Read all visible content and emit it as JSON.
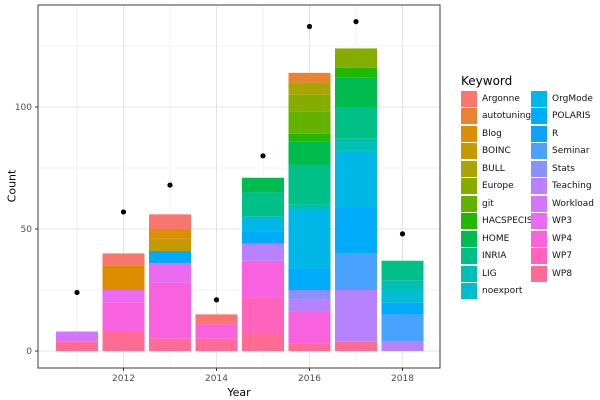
{
  "chart_data": {
    "type": "bar",
    "subtype": "stacked-bar-with-points",
    "title": "",
    "xlabel": "Year",
    "ylabel": "Count",
    "legend_title": "Keyword",
    "legend_position": "right",
    "grid": "on",
    "x_ticks": [
      2012,
      2014,
      2016,
      2018
    ],
    "x_minor_years": [
      2011,
      2013,
      2015,
      2017
    ],
    "y_ticks": [
      0,
      50,
      100
    ],
    "y_minor": [
      25,
      75,
      125
    ],
    "ylim": [
      -7,
      142
    ],
    "panel_border_color": "#3C3C3C",
    "major_grid_color": "#E3E3E3",
    "minor_grid_color": "#F2F2F2",
    "tick_label_color": "#4D4D4D",
    "dot_color": "#000000",
    "keywords": [
      {
        "label": "Argonne",
        "color": "#F8766D"
      },
      {
        "label": "autotuning",
        "color": "#EA8331"
      },
      {
        "label": "Blog",
        "color": "#DD8D00"
      },
      {
        "label": "BOINC",
        "color": "#C59900"
      },
      {
        "label": "BULL",
        "color": "#A8A400"
      },
      {
        "label": "Europe",
        "color": "#86AC00"
      },
      {
        "label": "git",
        "color": "#64B200"
      },
      {
        "label": "HACSPECIS",
        "color": "#24B700"
      },
      {
        "label": "HOME",
        "color": "#00BB4E"
      },
      {
        "label": "INRIA",
        "color": "#00C087"
      },
      {
        "label": "LIG",
        "color": "#00C0B4"
      },
      {
        "label": "noexport",
        "color": "#00BDD0"
      },
      {
        "label": "OrgMode",
        "color": "#00B7E8"
      },
      {
        "label": "POLARIS",
        "color": "#00ACF9"
      },
      {
        "label": "R",
        "color": "#0DA2FF"
      },
      {
        "label": "Seminar",
        "color": "#4AA2FF"
      },
      {
        "label": "Stats",
        "color": "#8C90FF"
      },
      {
        "label": "Teaching",
        "color": "#B782FF"
      },
      {
        "label": "Workload",
        "color": "#D575FF"
      },
      {
        "label": "WP3",
        "color": "#EA6AF1"
      },
      {
        "label": "WP4",
        "color": "#F962DE"
      },
      {
        "label": "WP7",
        "color": "#FF63BC"
      },
      {
        "label": "WP8",
        "color": "#FF6B94"
      }
    ],
    "bars": [
      {
        "year": 2011,
        "total": 8,
        "dot": 24,
        "segments": [
          [
            "WP8",
            4
          ],
          [
            "Workload",
            4
          ]
        ]
      },
      {
        "year": 2012,
        "total": 40,
        "dot": 57,
        "segments": [
          [
            "WP8",
            8
          ],
          [
            "WP4",
            12
          ],
          [
            "WP3",
            5
          ],
          [
            "Blog",
            10
          ],
          [
            "Argonne",
            5
          ]
        ]
      },
      {
        "year": 2013,
        "total": 56,
        "dot": 68,
        "segments": [
          [
            "WP8",
            5
          ],
          [
            "WP4",
            23
          ],
          [
            "WP3",
            8
          ],
          [
            "POLARIS",
            5
          ],
          [
            "BOINC",
            5
          ],
          [
            "Blog",
            4
          ],
          [
            "Argonne",
            6
          ]
        ]
      },
      {
        "year": 2014,
        "total": 15,
        "dot": 21,
        "segments": [
          [
            "WP8",
            5
          ],
          [
            "WP4",
            6
          ],
          [
            "Argonne",
            4
          ]
        ]
      },
      {
        "year": 2015,
        "total": 71,
        "dot": 80,
        "segments": [
          [
            "WP8",
            7
          ],
          [
            "WP7",
            15
          ],
          [
            "WP4",
            15
          ],
          [
            "Teaching",
            7
          ],
          [
            "POLARIS",
            5
          ],
          [
            "OrgMode",
            6
          ],
          [
            "INRIA",
            10
          ],
          [
            "HOME",
            6
          ]
        ]
      },
      {
        "year": 2016,
        "total": 114,
        "dot": 133,
        "segments": [
          [
            "WP8",
            3
          ],
          [
            "WP4",
            13
          ],
          [
            "Teaching",
            5
          ],
          [
            "Stats",
            4
          ],
          [
            "POLARIS",
            9
          ],
          [
            "OrgMode",
            24
          ],
          [
            "LIG",
            2
          ],
          [
            "INRIA",
            16
          ],
          [
            "HOME",
            10
          ],
          [
            "HACSPECIS",
            3
          ],
          [
            "git",
            9
          ],
          [
            "Europe",
            7
          ],
          [
            "BULL",
            5
          ],
          [
            "autotuning",
            4
          ]
        ]
      },
      {
        "year": 2017,
        "total": 124,
        "dot": 135,
        "segments": [
          [
            "WP8",
            4
          ],
          [
            "Teaching",
            21
          ],
          [
            "Seminar",
            15
          ],
          [
            "POLARIS",
            19
          ],
          [
            "OrgMode",
            23
          ],
          [
            "LIG",
            5
          ],
          [
            "INRIA",
            13
          ],
          [
            "HOME",
            12
          ],
          [
            "HACSPECIS",
            4
          ],
          [
            "Europe",
            8
          ]
        ]
      },
      {
        "year": 2018,
        "total": 37,
        "dot": 48,
        "segments": [
          [
            "Teaching",
            4
          ],
          [
            "Seminar",
            11
          ],
          [
            "POLARIS",
            5
          ],
          [
            "noexport",
            5
          ],
          [
            "LIG",
            4
          ],
          [
            "INRIA",
            8
          ]
        ]
      }
    ]
  }
}
